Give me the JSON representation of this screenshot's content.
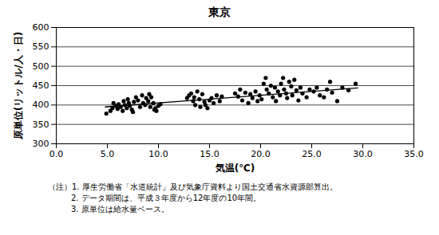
{
  "chart_data": {
    "type": "scatter",
    "title": "東京",
    "x_label": "気温(℃)",
    "y_label": "原単位(リットル/人・日)",
    "notes": [
      "（注）1. 厚生労働省「水道統計」及び気象庁資料より国土交通省水資源部算出。",
      "2. データ期間は、平成３年度から12年度の10年間。",
      "3. 原単位は給水量ベース。"
    ],
    "xlim": [
      0,
      35
    ],
    "xticks": [
      {
        "value": 0,
        "label": "0.0"
      },
      {
        "value": 5,
        "label": "5.0"
      },
      {
        "value": 10,
        "label": "10.0"
      },
      {
        "value": 15,
        "label": "15.0"
      },
      {
        "value": 20,
        "label": "20.0"
      },
      {
        "value": 25,
        "label": "25.0"
      },
      {
        "value": 30,
        "label": "30.0"
      },
      {
        "value": 35,
        "label": "35.0"
      }
    ],
    "ylim": [
      300,
      600
    ],
    "yticks": [
      300,
      350,
      400,
      450,
      500,
      550,
      600
    ],
    "grid": true,
    "series": [
      {
        "type": "scatter",
        "color": "#000000",
        "marker": "circle",
        "x": [
          4.9,
          5.3,
          5.5,
          5.6,
          5.8,
          6.0,
          6.1,
          6.3,
          6.5,
          6.6,
          6.7,
          6.9,
          7.0,
          7.1,
          7.2,
          7.4,
          7.5,
          7.6,
          7.8,
          8.0,
          8.2,
          8.4,
          8.5,
          8.7,
          8.8,
          9.0,
          9.1,
          9.2,
          9.3,
          9.5,
          9.6,
          9.7,
          9.8,
          10.0,
          10.2,
          12.8,
          13.0,
          13.2,
          13.4,
          13.5,
          13.6,
          13.8,
          14.0,
          14.1,
          14.3,
          14.5,
          14.6,
          14.8,
          15.0,
          15.2,
          15.4,
          15.7,
          16.0,
          16.2,
          17.5,
          17.8,
          18.0,
          18.2,
          18.5,
          18.8,
          19.0,
          19.2,
          19.5,
          19.7,
          19.9,
          20.1,
          20.3,
          20.5,
          20.6,
          20.8,
          21.0,
          21.2,
          21.4,
          21.5,
          21.7,
          21.9,
          22.0,
          22.2,
          22.3,
          22.5,
          22.6,
          22.8,
          23.0,
          23.1,
          23.3,
          23.5,
          23.7,
          23.9,
          24.1,
          24.5,
          24.8,
          25.2,
          25.5,
          25.8,
          26.2,
          26.5,
          26.8,
          27.0,
          27.5,
          28.0,
          28.6,
          29.3
        ],
        "values": [
          378,
          385,
          392,
          405,
          398,
          390,
          402,
          395,
          385,
          410,
          400,
          392,
          415,
          405,
          398,
          388,
          382,
          408,
          420,
          412,
          395,
          425,
          405,
          400,
          418,
          410,
          428,
          395,
          420,
          405,
          388,
          392,
          385,
          398,
          402,
          418,
          425,
          430,
          410,
          420,
          400,
          435,
          415,
          395,
          428,
          408,
          400,
          392,
          412,
          418,
          405,
          425,
          410,
          422,
          430,
          422,
          440,
          412,
          432,
          405,
          428,
          418,
          435,
          410,
          425,
          415,
          455,
          470,
          440,
          430,
          450,
          420,
          445,
          410,
          435,
          425,
          455,
          470,
          440,
          430,
          418,
          460,
          448,
          425,
          465,
          438,
          412,
          445,
          430,
          420,
          440,
          435,
          445,
          425,
          420,
          440,
          460,
          432,
          410,
          445,
          438,
          455
        ]
      },
      {
        "type": "line",
        "color": "#000000",
        "line_style": "solid",
        "x": [
          4.8,
          29.5
        ],
        "values": [
          395,
          444
        ]
      }
    ]
  }
}
